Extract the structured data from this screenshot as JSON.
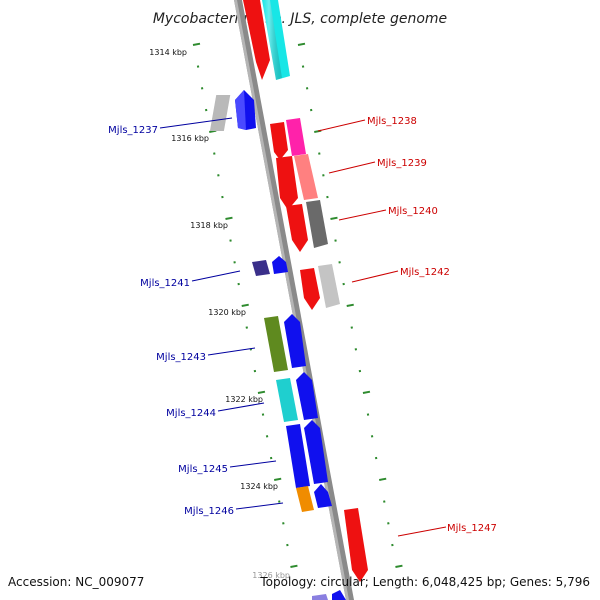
{
  "title": "Mycobacterium sp. JLS, complete genome",
  "footer": {
    "accession": "Accession: NC_009077",
    "topology": "Topology: circular; Length: 6,048,425 bp; Genes: 5,796"
  },
  "scale_labels": [
    "1314 kbp",
    "1316 kbp",
    "1318 kbp",
    "1320 kbp",
    "1322 kbp",
    "1324 kbp",
    "1326 kbp"
  ],
  "colors": {
    "forward_label": "#00009f",
    "reverse_label": "#cc0000",
    "backbone": "#8a8a8a",
    "tick": "#2e8b2e"
  },
  "gene_labels": {
    "forward": [
      "Mjls_1237",
      "Mjls_1241",
      "Mjls_1243",
      "Mjls_1244",
      "Mjls_1245",
      "Mjls_1246"
    ],
    "reverse": [
      "Mjls_1238",
      "Mjls_1239",
      "Mjls_1240",
      "Mjls_1242",
      "Mjls_1247"
    ]
  }
}
